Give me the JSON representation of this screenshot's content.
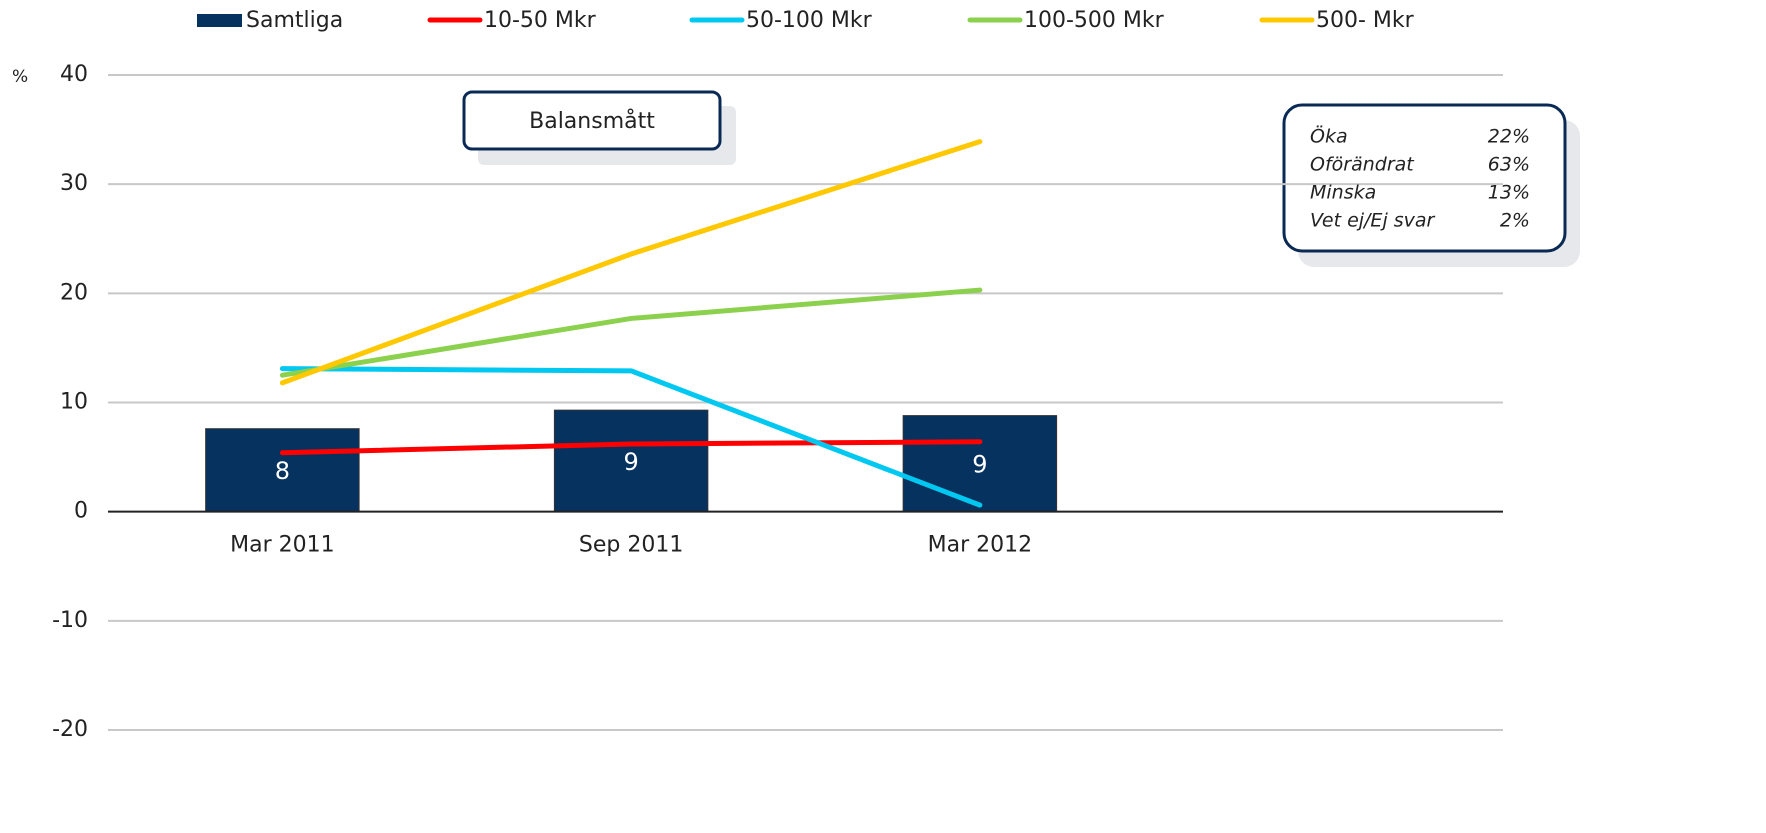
{
  "chart_data": {
    "type": "bar+line",
    "unit_label": "%",
    "annotation": "Balansmått",
    "info_box": [
      {
        "label": "Öka",
        "value": "22%"
      },
      {
        "label": "Oförändrat",
        "value": "63%"
      },
      {
        "label": "Minska",
        "value": "13%"
      },
      {
        "label": "Vet ej/Ej svar",
        "value": "2%"
      }
    ],
    "categories": [
      "Mar 2011",
      "Sep 2011",
      "Mar 2012",
      null
    ],
    "ylim": [
      -20,
      40
    ],
    "yticks": [
      -20,
      -10,
      0,
      10,
      20,
      30,
      40
    ],
    "grid": true,
    "legend": "top",
    "series": [
      {
        "name": "Samtliga",
        "type": "bar",
        "color": "#06325f",
        "values": [
          7.6,
          9.3,
          8.8,
          null
        ],
        "value_labels": [
          "8",
          "9",
          "9",
          null
        ]
      },
      {
        "name": "10-50 Mkr",
        "type": "line",
        "color": "#ff0000",
        "values": [
          5.4,
          6.2,
          6.4,
          null
        ]
      },
      {
        "name": "50-100 Mkr",
        "type": "line",
        "color": "#00c8f0",
        "values": [
          13.1,
          12.9,
          0.6,
          null
        ]
      },
      {
        "name": "100-500 Mkr",
        "type": "line",
        "color": "#8bd14d",
        "values": [
          12.5,
          17.7,
          20.3,
          null
        ]
      },
      {
        "name": "500- Mkr",
        "type": "line",
        "color": "#ffc800",
        "values": [
          11.8,
          23.6,
          33.9,
          null
        ]
      }
    ]
  }
}
